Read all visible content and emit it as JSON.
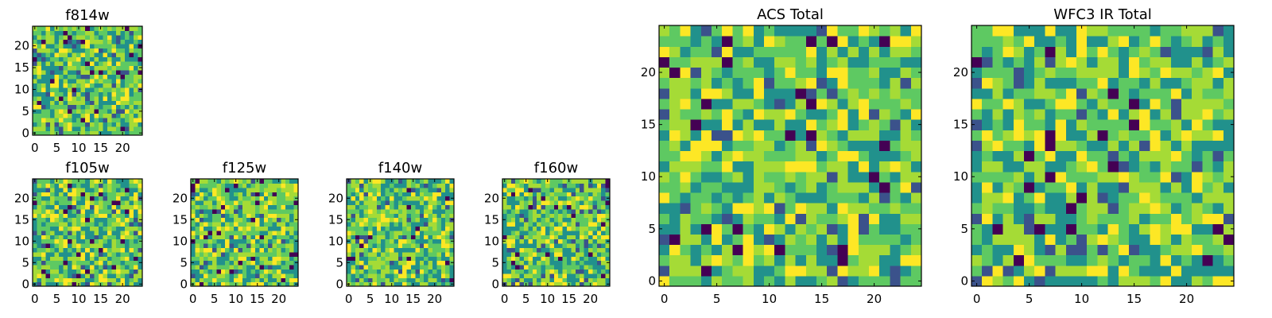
{
  "figure": {
    "colormap": [
      "#440154",
      "#3b528b",
      "#21918c",
      "#5ec962",
      "#a5db36",
      "#fde725"
    ]
  },
  "chart_data": [
    {
      "type": "heatmap",
      "name": "f814w",
      "title": "f814w",
      "grid": [
        25,
        25
      ],
      "xlim": [
        0,
        24
      ],
      "ylim": [
        0,
        24
      ],
      "xticks": [
        "0",
        "5",
        "10",
        "15",
        "20"
      ],
      "yticks": [
        "0",
        "5",
        "10",
        "15",
        "20"
      ],
      "seed": 11
    },
    {
      "type": "heatmap",
      "name": "f105w",
      "title": "f105w",
      "grid": [
        25,
        25
      ],
      "xlim": [
        0,
        24
      ],
      "ylim": [
        0,
        24
      ],
      "xticks": [
        "0",
        "5",
        "10",
        "15",
        "20"
      ],
      "yticks": [
        "0",
        "5",
        "10",
        "15",
        "20"
      ],
      "seed": 23
    },
    {
      "type": "heatmap",
      "name": "f125w",
      "title": "f125w",
      "grid": [
        25,
        25
      ],
      "xlim": [
        0,
        24
      ],
      "ylim": [
        0,
        24
      ],
      "xticks": [
        "0",
        "5",
        "10",
        "15",
        "20"
      ],
      "yticks": [
        "0",
        "5",
        "10",
        "15",
        "20"
      ],
      "seed": 37
    },
    {
      "type": "heatmap",
      "name": "f140w",
      "title": "f140w",
      "grid": [
        25,
        25
      ],
      "xlim": [
        0,
        24
      ],
      "ylim": [
        0,
        24
      ],
      "xticks": [
        "0",
        "5",
        "10",
        "15",
        "20"
      ],
      "yticks": [
        "0",
        "5",
        "10",
        "15",
        "20"
      ],
      "seed": 41
    },
    {
      "type": "heatmap",
      "name": "f160w",
      "title": "f160w",
      "grid": [
        25,
        25
      ],
      "xlim": [
        0,
        24
      ],
      "ylim": [
        0,
        24
      ],
      "xticks": [
        "0",
        "5",
        "10",
        "15",
        "20"
      ],
      "yticks": [
        "0",
        "5",
        "10",
        "15",
        "20"
      ],
      "seed": 53
    },
    {
      "type": "heatmap",
      "name": "acs-total",
      "title": "ACS Total",
      "grid": [
        25,
        25
      ],
      "xlim": [
        0,
        24
      ],
      "ylim": [
        0,
        24
      ],
      "xticks": [
        "0",
        "5",
        "10",
        "15",
        "20"
      ],
      "yticks": [
        "0",
        "5",
        "10",
        "15",
        "20"
      ],
      "seed": 67
    },
    {
      "type": "heatmap",
      "name": "wfc3-ir-total",
      "title": "WFC3 IR Total",
      "grid": [
        25,
        25
      ],
      "xlim": [
        0,
        24
      ],
      "ylim": [
        0,
        24
      ],
      "xticks": [
        "0",
        "5",
        "10",
        "15",
        "20"
      ],
      "yticks": [
        "0",
        "5",
        "10",
        "15",
        "20"
      ],
      "seed": 79
    }
  ]
}
